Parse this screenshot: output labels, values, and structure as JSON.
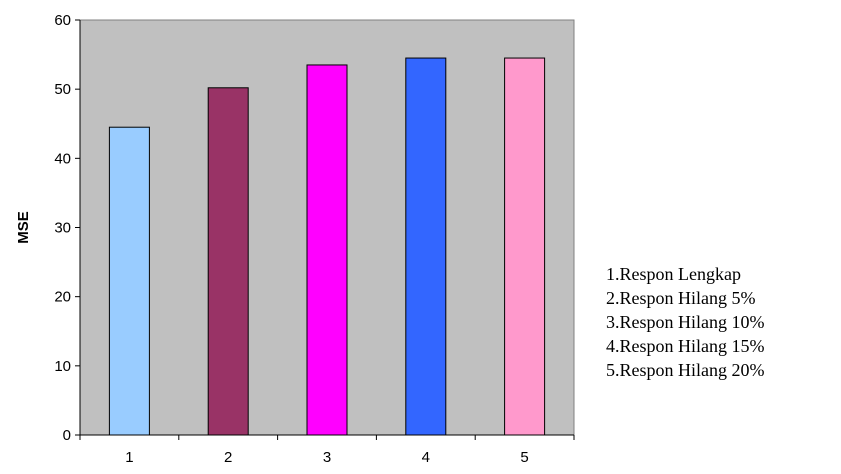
{
  "chart_data": {
    "type": "bar",
    "categories": [
      "1",
      "2",
      "3",
      "4",
      "5"
    ],
    "values": [
      44.5,
      50.2,
      53.5,
      54.5,
      54.5
    ],
    "bar_colors": [
      "#99ccff",
      "#993366",
      "#ff00ff",
      "#3366ff",
      "#ff99cc"
    ],
    "plot_background": "#c0c0c0",
    "title": "",
    "xlabel": "",
    "ylabel": "MSE",
    "ylim": [
      0,
      60
    ],
    "yticks": [
      0,
      10,
      20,
      30,
      40,
      50,
      60
    ],
    "grid": false,
    "legend_position": "right"
  },
  "legend": {
    "items": [
      "1.Respon Lengkap",
      "2.Respon Hilang 5%",
      "3.Respon Hilang 10%",
      "4.Respon Hilang 15%",
      "5.Respon Hilang 20%"
    ]
  }
}
